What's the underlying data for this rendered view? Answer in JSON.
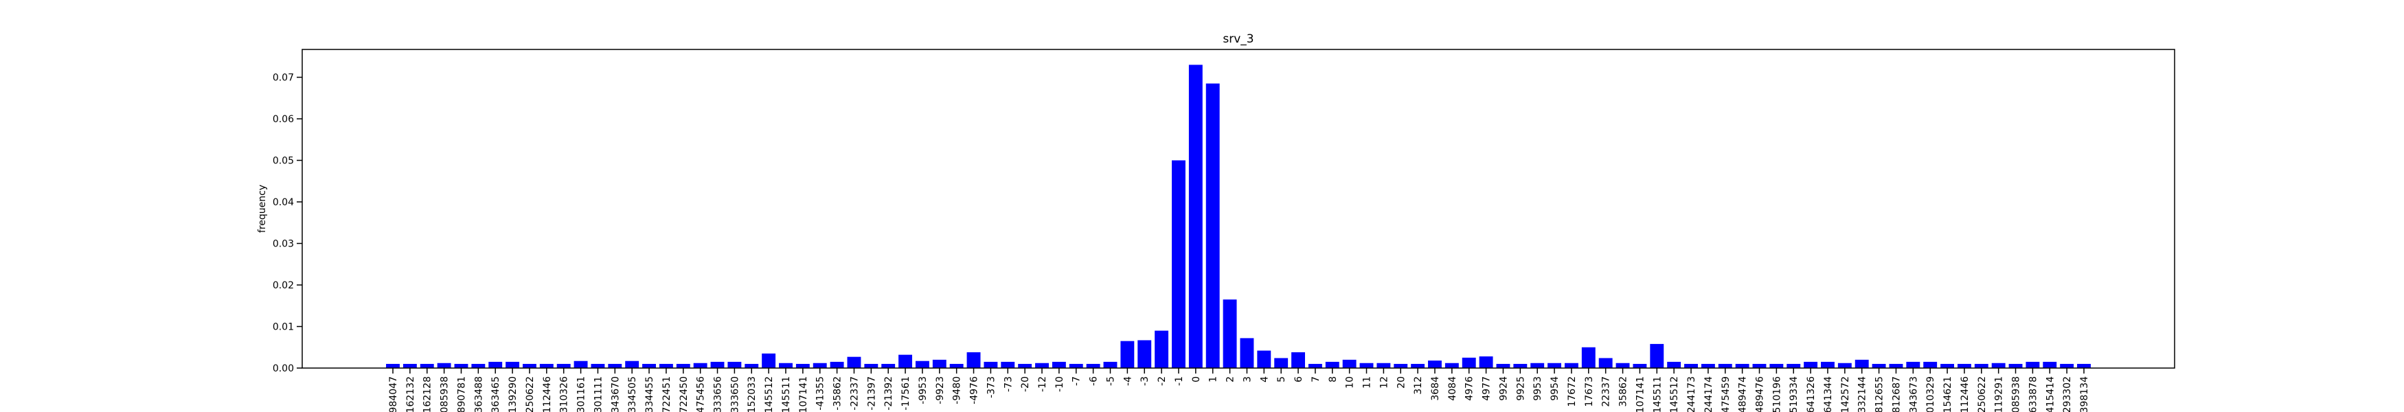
{
  "chart_data": {
    "type": "bar",
    "title": "srv_3",
    "ylabel": "frequency",
    "color": "#0000ff",
    "categories": [
      "984047",
      "162132",
      "162128",
      "085938",
      "890781",
      "363488",
      "363465",
      "1139290",
      "250622",
      "112446",
      "310326",
      "301161",
      "301111",
      "343670",
      "334505",
      "334455",
      "-722451",
      "-722450",
      "-475456",
      "-333656",
      "-333650",
      "-152033",
      "-145512",
      "-145511",
      "-107141",
      "-41355",
      "-35862",
      "-22337",
      "-21397",
      "-21392",
      "-17561",
      "-9953",
      "-9923",
      "-9480",
      "-4976",
      "-373",
      "-73",
      "-20",
      "-12",
      "-10",
      "-7",
      "-6",
      "-5",
      "-4",
      "-3",
      "-2",
      "-1",
      "0",
      "1",
      "2",
      "3",
      "4",
      "5",
      "6",
      "7",
      "8",
      "10",
      "11",
      "12",
      "20",
      "312",
      "3684",
      "4084",
      "4976",
      "4977",
      "9924",
      "9925",
      "9953",
      "9954",
      "17672",
      "17673",
      "22337",
      "35862",
      "107141",
      "145511",
      "145512",
      "244173",
      "244174",
      "475459",
      "489474",
      "489476",
      "510196",
      "519334",
      "641326",
      "641344",
      "142572",
      "332144",
      "812655",
      "812687",
      "343673",
      "010329",
      "154621",
      "112446",
      "250622",
      "119291",
      "085938",
      "633878",
      "415414",
      "293302",
      "398134"
    ],
    "values": [
      0.001,
      0.001,
      0.001,
      0.0012,
      0.001,
      0.001,
      0.0015,
      0.0015,
      0.001,
      0.001,
      0.001,
      0.0017,
      0.001,
      0.001,
      0.0017,
      0.001,
      0.001,
      0.001,
      0.0012,
      0.0015,
      0.0015,
      0.001,
      0.0035,
      0.0012,
      0.001,
      0.0012,
      0.0015,
      0.0027,
      0.001,
      0.001,
      0.0032,
      0.0017,
      0.002,
      0.001,
      0.0038,
      0.0015,
      0.0015,
      0.001,
      0.0012,
      0.0015,
      0.001,
      0.001,
      0.0015,
      0.0065,
      0.0067,
      0.009,
      0.05,
      0.073,
      0.0685,
      0.0165,
      0.0072,
      0.0042,
      0.0024,
      0.0038,
      0.001,
      0.0015,
      0.002,
      0.0012,
      0.0012,
      0.001,
      0.001,
      0.0018,
      0.0012,
      0.0025,
      0.0028,
      0.001,
      0.001,
      0.0012,
      0.0012,
      0.0012,
      0.005,
      0.0024,
      0.0012,
      0.001,
      0.0058,
      0.0015,
      0.001,
      0.001,
      0.001,
      0.001,
      0.001,
      0.001,
      0.001,
      0.0015,
      0.0015,
      0.0012,
      0.002,
      0.001,
      0.001,
      0.0015,
      0.0015,
      0.001,
      0.001,
      0.001,
      0.0012,
      0.001,
      0.0015,
      0.0015,
      0.001,
      0.001
    ],
    "ylim": [
      0,
      0.0767
    ],
    "yticks": [
      {
        "value": 0,
        "label": "0.00"
      },
      {
        "value": 0.01,
        "label": "0.01"
      },
      {
        "value": 0.02,
        "label": "0.02"
      },
      {
        "value": 0.03,
        "label": "0.03"
      },
      {
        "value": 0.04,
        "label": "0.04"
      },
      {
        "value": 0.05,
        "label": "0.05"
      },
      {
        "value": 0.06,
        "label": "0.06"
      },
      {
        "value": 0.07,
        "label": "0.07"
      }
    ]
  }
}
